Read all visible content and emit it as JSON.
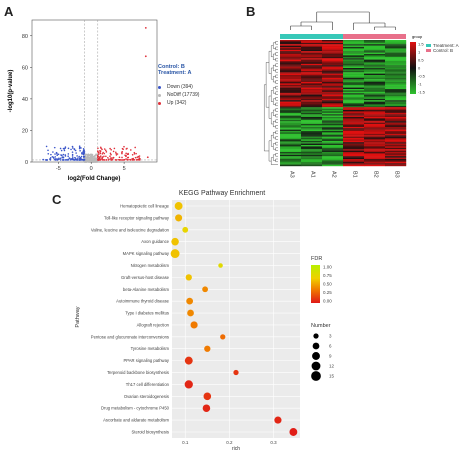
{
  "panels": {
    "a": "A",
    "b": "B",
    "c": "C"
  },
  "colors": {
    "down": "#3a55c9",
    "nodiff": "#b9b9b9",
    "up": "#e0303a",
    "heat_low": "#2fc22f",
    "heat_mid": "#111111",
    "heat_high": "#e01010",
    "treatment": "#37c8b8",
    "control": "#e8708a"
  },
  "chart_data": [
    {
      "id": "volcano",
      "type": "scatter",
      "xlabel": "log2(Fold Change)",
      "ylabel": "-log10(p-value)",
      "xticks": [
        "-5",
        "0",
        "5"
      ],
      "yticks": [
        "0",
        "20",
        "40",
        "60",
        "80"
      ],
      "xlim": [
        -9,
        10
      ],
      "ylim": [
        0,
        90
      ],
      "legend_title_1": "Control: B",
      "legend_title_2": "Treatment: A",
      "series": [
        {
          "name": "Down (394)",
          "color": "down"
        },
        {
          "name": "NoDiff (17739)",
          "color": "nodiff"
        },
        {
          "name": "Up (342)",
          "color": "up"
        }
      ],
      "outliers": [
        [
          8.3,
          85
        ],
        [
          8.3,
          67
        ],
        [
          -7.3,
          1.5
        ],
        [
          8.6,
          3
        ]
      ]
    },
    {
      "id": "heatmap",
      "type": "heatmap",
      "columns": [
        "A3",
        "A1",
        "A2",
        "B1",
        "B2",
        "B3"
      ],
      "legend_title": "group",
      "groups": [
        "Treatment: A",
        "Control: B"
      ],
      "colorbar_ticks": [
        "1.5",
        "1",
        "0.5",
        "0",
        "-0.5",
        "-1",
        "-1.5"
      ]
    },
    {
      "id": "kegg",
      "type": "scatter",
      "title": "KEGG Pathway Enrichment",
      "xlabel": "rich",
      "ylabel": "Pathway",
      "xticks": [
        "0.1",
        "0.2",
        "0.3"
      ],
      "xlim": [
        0.07,
        0.36
      ],
      "categories": [
        "Hematopoietic cell lineage",
        "Toll-like receptor signaling pathway",
        "Valine, leucine and isoleucine degradation",
        "Axon guidance",
        "MAPK signaling pathway",
        "Nitrogen metabolism",
        "Graft-versus-host disease",
        "beta-Alanine metabolism",
        "Autoimmune thyroid disease",
        "Type I diabetes mellitus",
        "Allograft rejection",
        "Pentose and glucuronate interconversions",
        "Tyrosine metabolism",
        "PPAR signaling pathway",
        "Terpenoid backbone biosynthesis",
        "Th17 cell differentiation",
        "Ovarian steroidogenesis",
        "Drug metabolism - cytochrome P450",
        "Ascorbate and aldarate metabolism",
        "Steroid biosynthesis"
      ],
      "rich": [
        0.085,
        0.085,
        0.1,
        0.077,
        0.077,
        0.18,
        0.108,
        0.145,
        0.11,
        0.112,
        0.12,
        0.185,
        0.15,
        0.108,
        0.215,
        0.108,
        0.15,
        0.148,
        0.31,
        0.345
      ],
      "number": [
        9,
        7,
        4,
        8,
        12,
        2,
        5,
        4,
        6,
        6,
        7,
        3,
        5,
        9,
        3,
        10,
        8,
        8,
        7,
        9
      ],
      "fdr": [
        0.6,
        0.55,
        0.7,
        0.6,
        0.6,
        0.75,
        0.6,
        0.4,
        0.4,
        0.4,
        0.35,
        0.3,
        0.35,
        0.1,
        0.1,
        0.05,
        0.1,
        0.05,
        0.05,
        0.02
      ],
      "fdr_legend_title": "FDR",
      "fdr_ticks": [
        "1.00",
        "0.75",
        "0.50",
        "0.25",
        "0.00"
      ],
      "number_legend_title": "Number",
      "number_ticks": [
        "3",
        "6",
        "9",
        "12",
        "15"
      ]
    }
  ]
}
